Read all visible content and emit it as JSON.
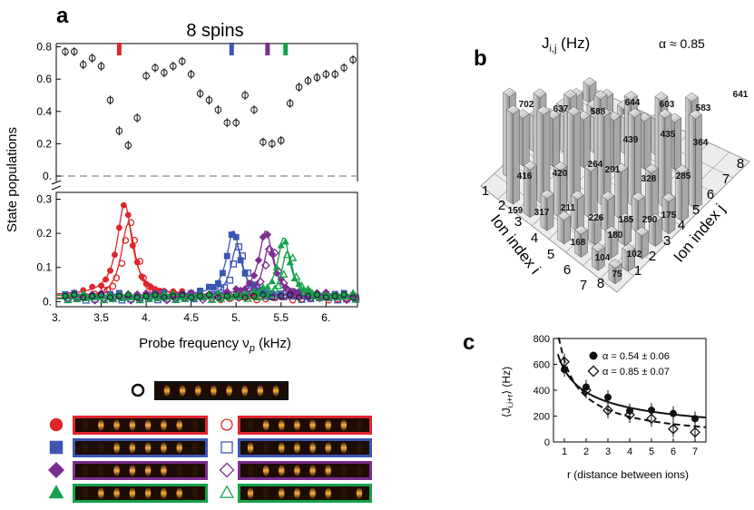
{
  "panels": {
    "a": "a",
    "b": "b",
    "c": "c"
  },
  "panel_a": {
    "title": "8 spins",
    "ylabel": "State populations",
    "xlabel_pre": "Probe frequency ν",
    "xlabel_sub": "p",
    "xlabel_post": " (kHz)"
  },
  "panel_b": {
    "title_pre": "J",
    "title_sub": "i,j",
    "title_post": " (Hz)",
    "alpha": "α ≈ 0.85",
    "axis_i": "Ion index i",
    "axis_j": "Ion index j"
  },
  "panel_c": {
    "ylabel": "⟨J",
    "ylabel_sub": "i,i+r",
    "ylabel_post": "⟩ (Hz)",
    "xlabel": "r (distance between ions)",
    "legend": [
      "α = 0.54 ± 0.06",
      "α = 0.85 ± 0.07"
    ]
  },
  "colors": {
    "red": "#e0262b",
    "blue": "#3c55b3",
    "purple": "#7b2d8e",
    "green": "#13a24a",
    "black": "#111111"
  },
  "chart_data": [
    {
      "type": "scatter",
      "panel": "a-top",
      "x": [
        3.1,
        3.2,
        3.3,
        3.4,
        3.5,
        3.6,
        3.7,
        3.8,
        3.9,
        4.0,
        4.1,
        4.2,
        4.3,
        4.4,
        4.5,
        4.6,
        4.7,
        4.8,
        4.9,
        5.0,
        5.1,
        5.2,
        5.3,
        5.4,
        5.5,
        5.6,
        5.7,
        5.8,
        5.9,
        6.0,
        6.1,
        6.2,
        6.3
      ],
      "y": [
        0.77,
        0.77,
        0.69,
        0.73,
        0.68,
        0.47,
        0.28,
        0.19,
        0.36,
        0.62,
        0.67,
        0.64,
        0.68,
        0.71,
        0.63,
        0.51,
        0.47,
        0.41,
        0.33,
        0.33,
        0.5,
        0.41,
        0.21,
        0.2,
        0.22,
        0.45,
        0.55,
        0.59,
        0.61,
        0.63,
        0.63,
        0.67,
        0.72
      ],
      "markers": [
        {
          "x": 3.7,
          "color": "red"
        },
        {
          "x": 4.95,
          "color": "blue"
        },
        {
          "x": 5.35,
          "color": "purple"
        },
        {
          "x": 5.55,
          "color": "green"
        }
      ],
      "yticks": [
        "0.",
        "0.2",
        "0.4",
        "0.6",
        "0.8"
      ],
      "ylim": [
        0,
        0.82
      ]
    },
    {
      "type": "line",
      "panel": "a-bottom",
      "xticks": [
        "3.",
        "3.5",
        "4.",
        "4.5",
        "5.",
        "5.5",
        "6."
      ],
      "yticks": [
        "0.",
        "0.1",
        "0.2",
        "0.3"
      ],
      "xlim": [
        3.0,
        6.35
      ],
      "ylim": [
        -0.015,
        0.32
      ],
      "series": [
        {
          "color": "red",
          "center": 3.76,
          "amp": 0.27,
          "width": 0.1
        },
        {
          "color": "blue",
          "center": 4.97,
          "amp": 0.19,
          "width": 0.09
        },
        {
          "color": "purple",
          "center": 5.33,
          "amp": 0.19,
          "width": 0.09
        },
        {
          "color": "green",
          "center": 5.53,
          "amp": 0.17,
          "width": 0.08
        }
      ]
    },
    {
      "type": "bar3d",
      "panel": "b",
      "i_ticks": [
        "1",
        "2",
        "3",
        "4",
        "5",
        "6",
        "7",
        "8"
      ],
      "j_ticks": [
        "1",
        "2",
        "3",
        "4",
        "5",
        "6",
        "7",
        "8"
      ],
      "labels": [
        {
          "value": "702"
        },
        {
          "value": "637"
        },
        {
          "value": "588"
        },
        {
          "value": "644"
        },
        {
          "value": "603"
        },
        {
          "value": "583"
        },
        {
          "value": "641"
        },
        {
          "value": "416"
        },
        {
          "value": "420"
        },
        {
          "value": "439"
        },
        {
          "value": "435"
        },
        {
          "value": "364"
        },
        {
          "value": "264"
        },
        {
          "value": "291"
        },
        {
          "value": "328"
        },
        {
          "value": "285"
        },
        {
          "value": "159"
        },
        {
          "value": "317"
        },
        {
          "value": "211"
        },
        {
          "value": "226"
        },
        {
          "value": "185"
        },
        {
          "value": "290"
        },
        {
          "value": "175"
        },
        {
          "value": "168"
        },
        {
          "value": "180"
        },
        {
          "value": "104"
        },
        {
          "value": "102"
        },
        {
          "value": "75"
        }
      ]
    },
    {
      "type": "scatter",
      "panel": "c",
      "xticks": [
        "1",
        "2",
        "3",
        "4",
        "5",
        "6",
        "7"
      ],
      "yticks": [
        "0",
        "200",
        "400",
        "600",
        "800"
      ],
      "xlim": [
        0.5,
        7.5
      ],
      "ylim": [
        0,
        800
      ],
      "series": [
        {
          "name": "α = 0.54 ± 0.06",
          "x": [
            1,
            2,
            3,
            4,
            5,
            6,
            7
          ],
          "y": [
            560,
            425,
            345,
            240,
            245,
            220,
            180
          ]
        },
        {
          "name": "α = 0.85 ± 0.07",
          "x": [
            1,
            2,
            3,
            4,
            5,
            6,
            7
          ],
          "y": [
            620,
            400,
            245,
            210,
            180,
            100,
            75
          ]
        }
      ]
    }
  ],
  "state_legend": {
    "rows": [
      {
        "marker": "circle-open",
        "color": "black"
      },
      {
        "marker": "circle",
        "color": "red"
      },
      {
        "marker": "square",
        "color": "blue"
      },
      {
        "marker": "diamond",
        "color": "purple"
      },
      {
        "marker": "triangle",
        "color": "green"
      }
    ]
  }
}
